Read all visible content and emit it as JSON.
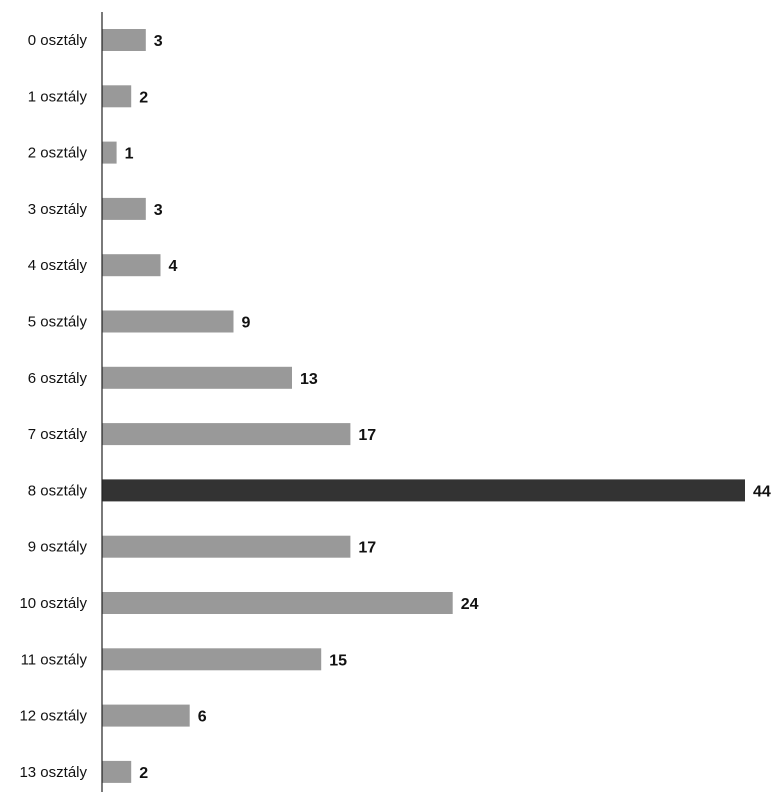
{
  "chart_data": {
    "type": "bar",
    "orientation": "horizontal",
    "categories": [
      "0 osztály",
      "1 osztály",
      "2 osztály",
      "3 osztály",
      "4 osztály",
      "5 osztály",
      "6 osztály",
      "7 osztály",
      "8 osztály",
      "9 osztály",
      "10 osztály",
      "11 osztály",
      "12 osztály",
      "13 osztály"
    ],
    "values": [
      3,
      2,
      1,
      3,
      4,
      9,
      13,
      17,
      44,
      17,
      24,
      15,
      6,
      2
    ],
    "highlight_index": 8,
    "title": "",
    "xlabel": "",
    "ylabel": "",
    "xlim": [
      0,
      44
    ],
    "grid": false,
    "legend": "none",
    "colors": {
      "bar": "#999999",
      "highlight": "#333333",
      "axis": "#222222",
      "text": "#111111"
    }
  }
}
